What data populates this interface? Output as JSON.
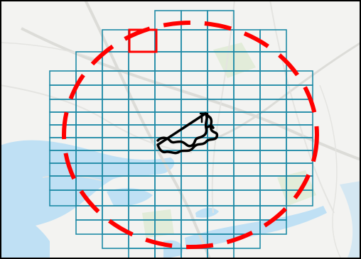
{
  "map": {
    "basemap": "light-gray-canvas",
    "colors": {
      "land": "#f3f3f1",
      "water": "#bfe0f4",
      "major_road": "#dcdcd8",
      "minor_road": "#e4e4e1",
      "park": "#e2ecd9",
      "grid_line": "#1d8aa6",
      "buffer_circle": "#ff0000",
      "selected_cell": "#ff0000",
      "track": "#000000",
      "frame_border": "#000000"
    },
    "layers": {
      "grid": "square-cell-grid",
      "buffer": "dashed-circle-buffer",
      "selection": "highlighted-grid-cell",
      "track": "route-polyline"
    }
  }
}
